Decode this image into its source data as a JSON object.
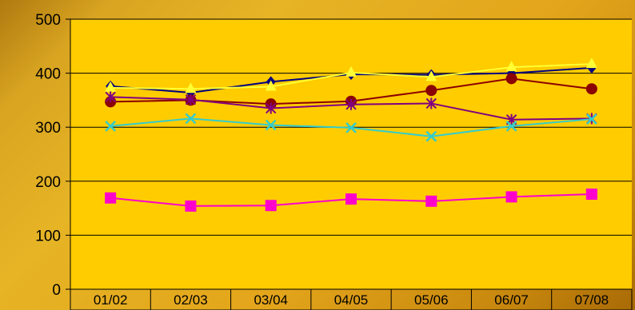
{
  "chart_data": {
    "type": "line",
    "title": "",
    "xlabel": "",
    "ylabel": "",
    "ylim": [
      0,
      500
    ],
    "yticks": [
      0,
      100,
      200,
      300,
      400,
      500
    ],
    "grid": "horizontal",
    "legend": "none",
    "plot_area_color": "#FFCC00",
    "categories": [
      "01/02",
      "02/03",
      "03/04",
      "04/05",
      "05/06",
      "06/07",
      "07/08"
    ],
    "series": [
      {
        "values": [
          376,
          364,
          384,
          398,
          397,
          400,
          410
        ],
        "color": "#000080",
        "marker": "diamond"
      },
      {
        "values": [
          373,
          371,
          375,
          401,
          393,
          411,
          417
        ],
        "color": "#FFFF33",
        "marker": "triangle"
      },
      {
        "values": [
          347,
          350,
          343,
          348,
          368,
          390,
          371
        ],
        "color": "#8B0000",
        "marker": "circle"
      },
      {
        "values": [
          356,
          351,
          335,
          342,
          344,
          314,
          316
        ],
        "color": "#800080",
        "marker": "asterisk"
      },
      {
        "values": [
          302,
          316,
          304,
          299,
          283,
          302,
          315
        ],
        "color": "#33CCCC",
        "marker": "x"
      },
      {
        "values": [
          169,
          154,
          155,
          167,
          163,
          171,
          176
        ],
        "color": "#FF00CC",
        "marker": "square"
      }
    ]
  }
}
